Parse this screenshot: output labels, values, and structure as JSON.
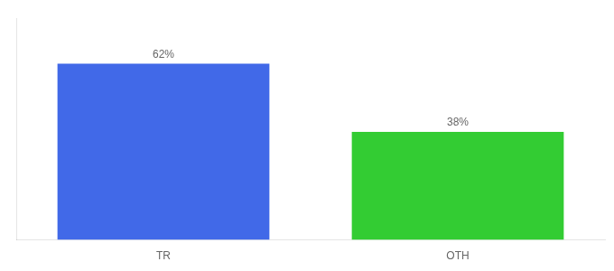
{
  "chart_data": {
    "type": "bar",
    "categories": [
      "TR",
      "OTH"
    ],
    "values": [
      62,
      38
    ],
    "value_labels": [
      "62%",
      "38%"
    ],
    "colors": [
      "#4169e8",
      "#33cc33"
    ],
    "ylim": [
      0,
      78
    ],
    "data_labels": true,
    "tick_labels": "x",
    "grid": false
  }
}
